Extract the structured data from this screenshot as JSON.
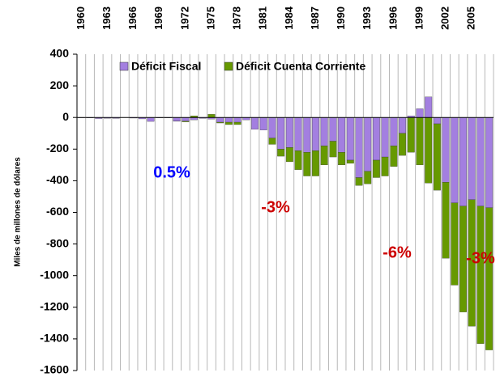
{
  "chart_data": {
    "type": "bar",
    "stacked": true,
    "y_label": "Miles de millones de dólares",
    "categories": [
      "1960",
      null,
      null,
      "1963",
      null,
      null,
      "1966",
      null,
      null,
      "1969",
      null,
      null,
      "1972",
      null,
      null,
      "1975",
      null,
      null,
      "1978",
      null,
      null,
      "1981",
      null,
      null,
      "1984",
      null,
      null,
      "1987",
      null,
      null,
      "1990",
      null,
      null,
      "1993",
      null,
      null,
      "1996",
      null,
      null,
      "1999",
      null,
      null,
      "2002",
      null,
      null,
      "2005",
      null,
      null
    ],
    "series": [
      {
        "name": "Déficit Fiscal",
        "color": "#a37fe0",
        "values": [
          -2,
          -3,
          -7,
          -5,
          -6,
          -1,
          -4,
          -9,
          -25,
          -3,
          -3,
          -23,
          -23,
          -15,
          -6,
          -10,
          -30,
          -30,
          -30,
          -15,
          -75,
          -80,
          -130,
          -200,
          -190,
          -210,
          -220,
          -210,
          -180,
          -150,
          -220,
          -270,
          -380,
          -340,
          -270,
          -250,
          -180,
          -100,
          10,
          55,
          130,
          -40,
          -410,
          -540,
          -560,
          -520,
          -560,
          -570
        ]
      },
      {
        "name": "Déficit Cuenta Corriente",
        "color": "#669900",
        "values": [
          0,
          0,
          0,
          0,
          0,
          0,
          0,
          0,
          0,
          0,
          0,
          -1,
          -5,
          10,
          0,
          20,
          -5,
          -15,
          -15,
          0,
          0,
          0,
          -40,
          -45,
          -90,
          -120,
          -150,
          -160,
          -120,
          -100,
          -80,
          -20,
          -50,
          -80,
          -110,
          -120,
          -130,
          -140,
          -220,
          -300,
          -415,
          -420,
          -480,
          -520,
          -670,
          -800,
          -870,
          -900
        ]
      }
    ],
    "ylim": [
      -1600,
      400
    ],
    "yticks": [
      -1600,
      -1400,
      -1200,
      -1000,
      -800,
      -600,
      -400,
      -200,
      0,
      200,
      400
    ],
    "annotations": [
      {
        "text": "0.5%",
        "color": "#0000ff"
      },
      {
        "text": "-3%",
        "color": "#cc0000"
      },
      {
        "text": "-6%",
        "color": "#cc0000"
      },
      {
        "text": "-3%",
        "color": "#cc0000"
      }
    ]
  }
}
